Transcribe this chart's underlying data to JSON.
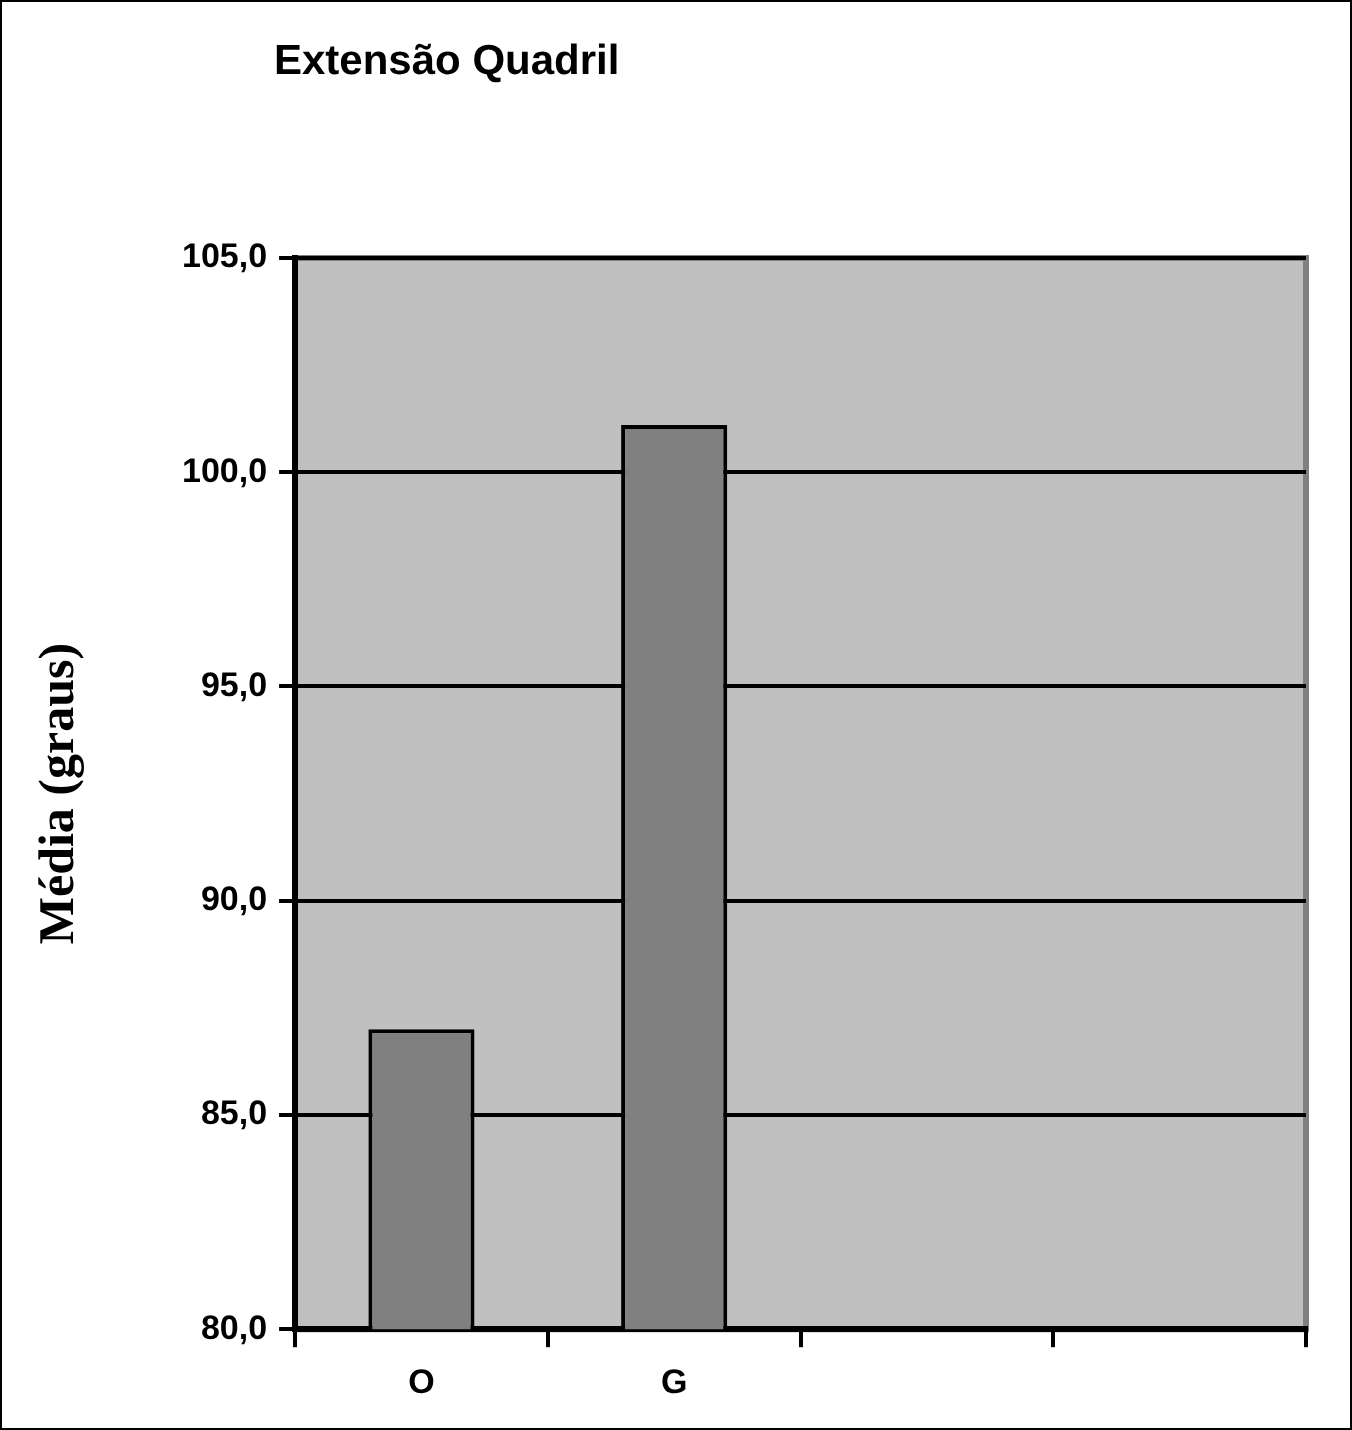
{
  "chart_data": {
    "type": "bar",
    "title": "Extensão Quadril",
    "ylabel": "Média (graus)",
    "categories": [
      "O",
      "G",
      null,
      null
    ],
    "values": [
      87.0,
      101.1,
      null,
      null
    ],
    "color": "#808080",
    "ylim": [
      80,
      105
    ],
    "yticks": [
      {
        "value": 80,
        "label": "80,0"
      },
      {
        "value": 85,
        "label": "85,0"
      },
      {
        "value": 90,
        "label": "90,0"
      },
      {
        "value": 95,
        "label": "95,0"
      },
      {
        "value": 100,
        "label": "100,0"
      },
      {
        "value": 105,
        "label": "105,0"
      }
    ],
    "grid": "y",
    "legend": false
  }
}
